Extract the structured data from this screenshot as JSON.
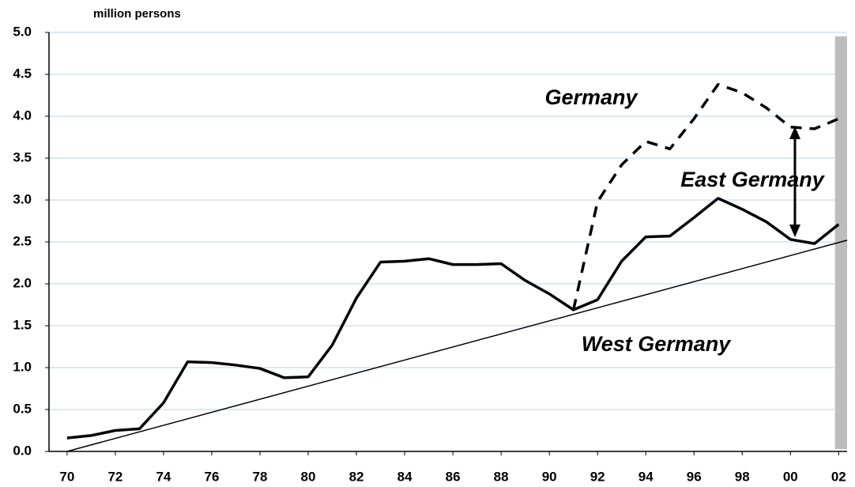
{
  "chart_data": {
    "type": "line",
    "y_axis_label": "million persons",
    "x": [
      1970,
      1971,
      1972,
      1973,
      1974,
      1975,
      1976,
      1977,
      1978,
      1979,
      1980,
      1981,
      1982,
      1983,
      1984,
      1985,
      1986,
      1987,
      1988,
      1989,
      1990,
      1991,
      1992,
      1993,
      1994,
      1995,
      1996,
      1997,
      1998,
      1999,
      2000,
      2001,
      2002
    ],
    "series": [
      {
        "name": "West Germany",
        "color": "#000000",
        "dash": false,
        "values": [
          0.16,
          0.19,
          0.25,
          0.27,
          0.58,
          1.07,
          1.06,
          1.03,
          0.99,
          0.88,
          0.89,
          1.27,
          1.83,
          2.26,
          2.27,
          2.3,
          2.23,
          2.23,
          2.24,
          2.04,
          1.88,
          1.69,
          1.81,
          2.27,
          2.56,
          2.57,
          2.79,
          3.02,
          2.89,
          2.74,
          2.53,
          2.48,
          2.71
        ]
      },
      {
        "name": "Germany",
        "color": "#000000",
        "dash": true,
        "values": [
          null,
          null,
          null,
          null,
          null,
          null,
          null,
          null,
          null,
          null,
          null,
          null,
          null,
          null,
          null,
          null,
          null,
          null,
          null,
          null,
          null,
          1.69,
          2.98,
          3.42,
          3.7,
          3.61,
          3.97,
          4.38,
          4.28,
          4.1,
          3.87,
          3.85,
          3.97
        ]
      }
    ],
    "annotations": [
      "Germany",
      "East Germany",
      "West Germany"
    ],
    "trend_line": {
      "x": [
        1970,
        2002.35
      ],
      "values": [
        0,
        2.52
      ]
    },
    "highlight_x": [
      2001.85,
      2002.35
    ],
    "xlim": [
      1969.25,
      2002.35
    ],
    "ylim": [
      0,
      5
    ],
    "xticks": [
      {
        "value": 1970,
        "label": "70"
      },
      {
        "value": 1972,
        "label": "72"
      },
      {
        "value": 1974,
        "label": "74"
      },
      {
        "value": 1976,
        "label": "76"
      },
      {
        "value": 1978,
        "label": "78"
      },
      {
        "value": 1980,
        "label": "80"
      },
      {
        "value": 1982,
        "label": "82"
      },
      {
        "value": 1984,
        "label": "84"
      },
      {
        "value": 1986,
        "label": "86"
      },
      {
        "value": 1988,
        "label": "88"
      },
      {
        "value": 1990,
        "label": "90"
      },
      {
        "value": 1992,
        "label": "92"
      },
      {
        "value": 1994,
        "label": "94"
      },
      {
        "value": 1996,
        "label": "96"
      },
      {
        "value": 1998,
        "label": "98"
      },
      {
        "value": 2000,
        "label": "00"
      },
      {
        "value": 2002,
        "label": "02"
      }
    ],
    "yticks": [
      {
        "value": 0,
        "label": "0.0"
      },
      0.5,
      {
        "value": 1,
        "label": "1.0"
      },
      1.5,
      {
        "value": 2,
        "label": "2.0"
      },
      2.5,
      {
        "value": 3,
        "label": "3.0"
      },
      3.5,
      {
        "value": 4,
        "label": "4.0"
      },
      4.5,
      {
        "value": 5,
        "label": "5.0"
      }
    ],
    "grid": true,
    "grid_color": "#cfe3f1"
  }
}
